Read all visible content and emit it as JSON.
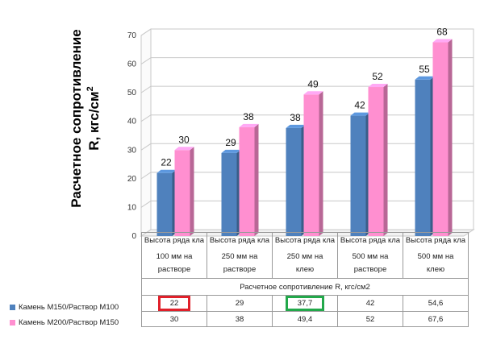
{
  "chart_data": {
    "type": "bar",
    "ylabel": "Расчетное сопротивление R, кгс/см2",
    "ylim": [
      0,
      70
    ],
    "yticks": [
      0,
      10,
      20,
      30,
      40,
      50,
      60,
      70
    ],
    "categories": [
      [
        "Высота ряда кла",
        "100 мм на",
        "растворе"
      ],
      [
        "Высота ряда кла",
        "250 мм на",
        "растворе"
      ],
      [
        "Высота ряда кла",
        "250 мм на",
        "клею"
      ],
      [
        "Высота ряда кла",
        "500 мм на",
        "растворе"
      ],
      [
        "Высота ряда кла",
        "500 мм на",
        "клею"
      ]
    ],
    "category_group_label": "Расчетное сопротивление R, кгс/см2",
    "series": [
      {
        "name": "Камень М150/Раствор М100",
        "color": "#4f81bd",
        "values": [
          22,
          29,
          37.7,
          42,
          54.6
        ],
        "bar_labels": [
          "22",
          "29",
          "38",
          "42",
          "55"
        ],
        "table_values": [
          "22",
          "29",
          "37,7",
          "42",
          "54,6"
        ]
      },
      {
        "name": "Камень М200/Раствор М150",
        "color": "#ff8fd0",
        "values": [
          30,
          38,
          49.4,
          52,
          67.6
        ],
        "bar_labels": [
          "30",
          "38",
          "49",
          "52",
          "68"
        ],
        "table_values": [
          "30",
          "38",
          "49,4",
          "52",
          "67,6"
        ]
      }
    ],
    "highlights": [
      {
        "series": 0,
        "index": 0,
        "color": "#e0202a"
      },
      {
        "series": 0,
        "index": 2,
        "color": "#22a84a"
      }
    ],
    "grid": true
  },
  "ytitle_main": "Расчетное сопротивление",
  "ytitle_sub": "R, кгс/см",
  "ytitle_sup": "2"
}
